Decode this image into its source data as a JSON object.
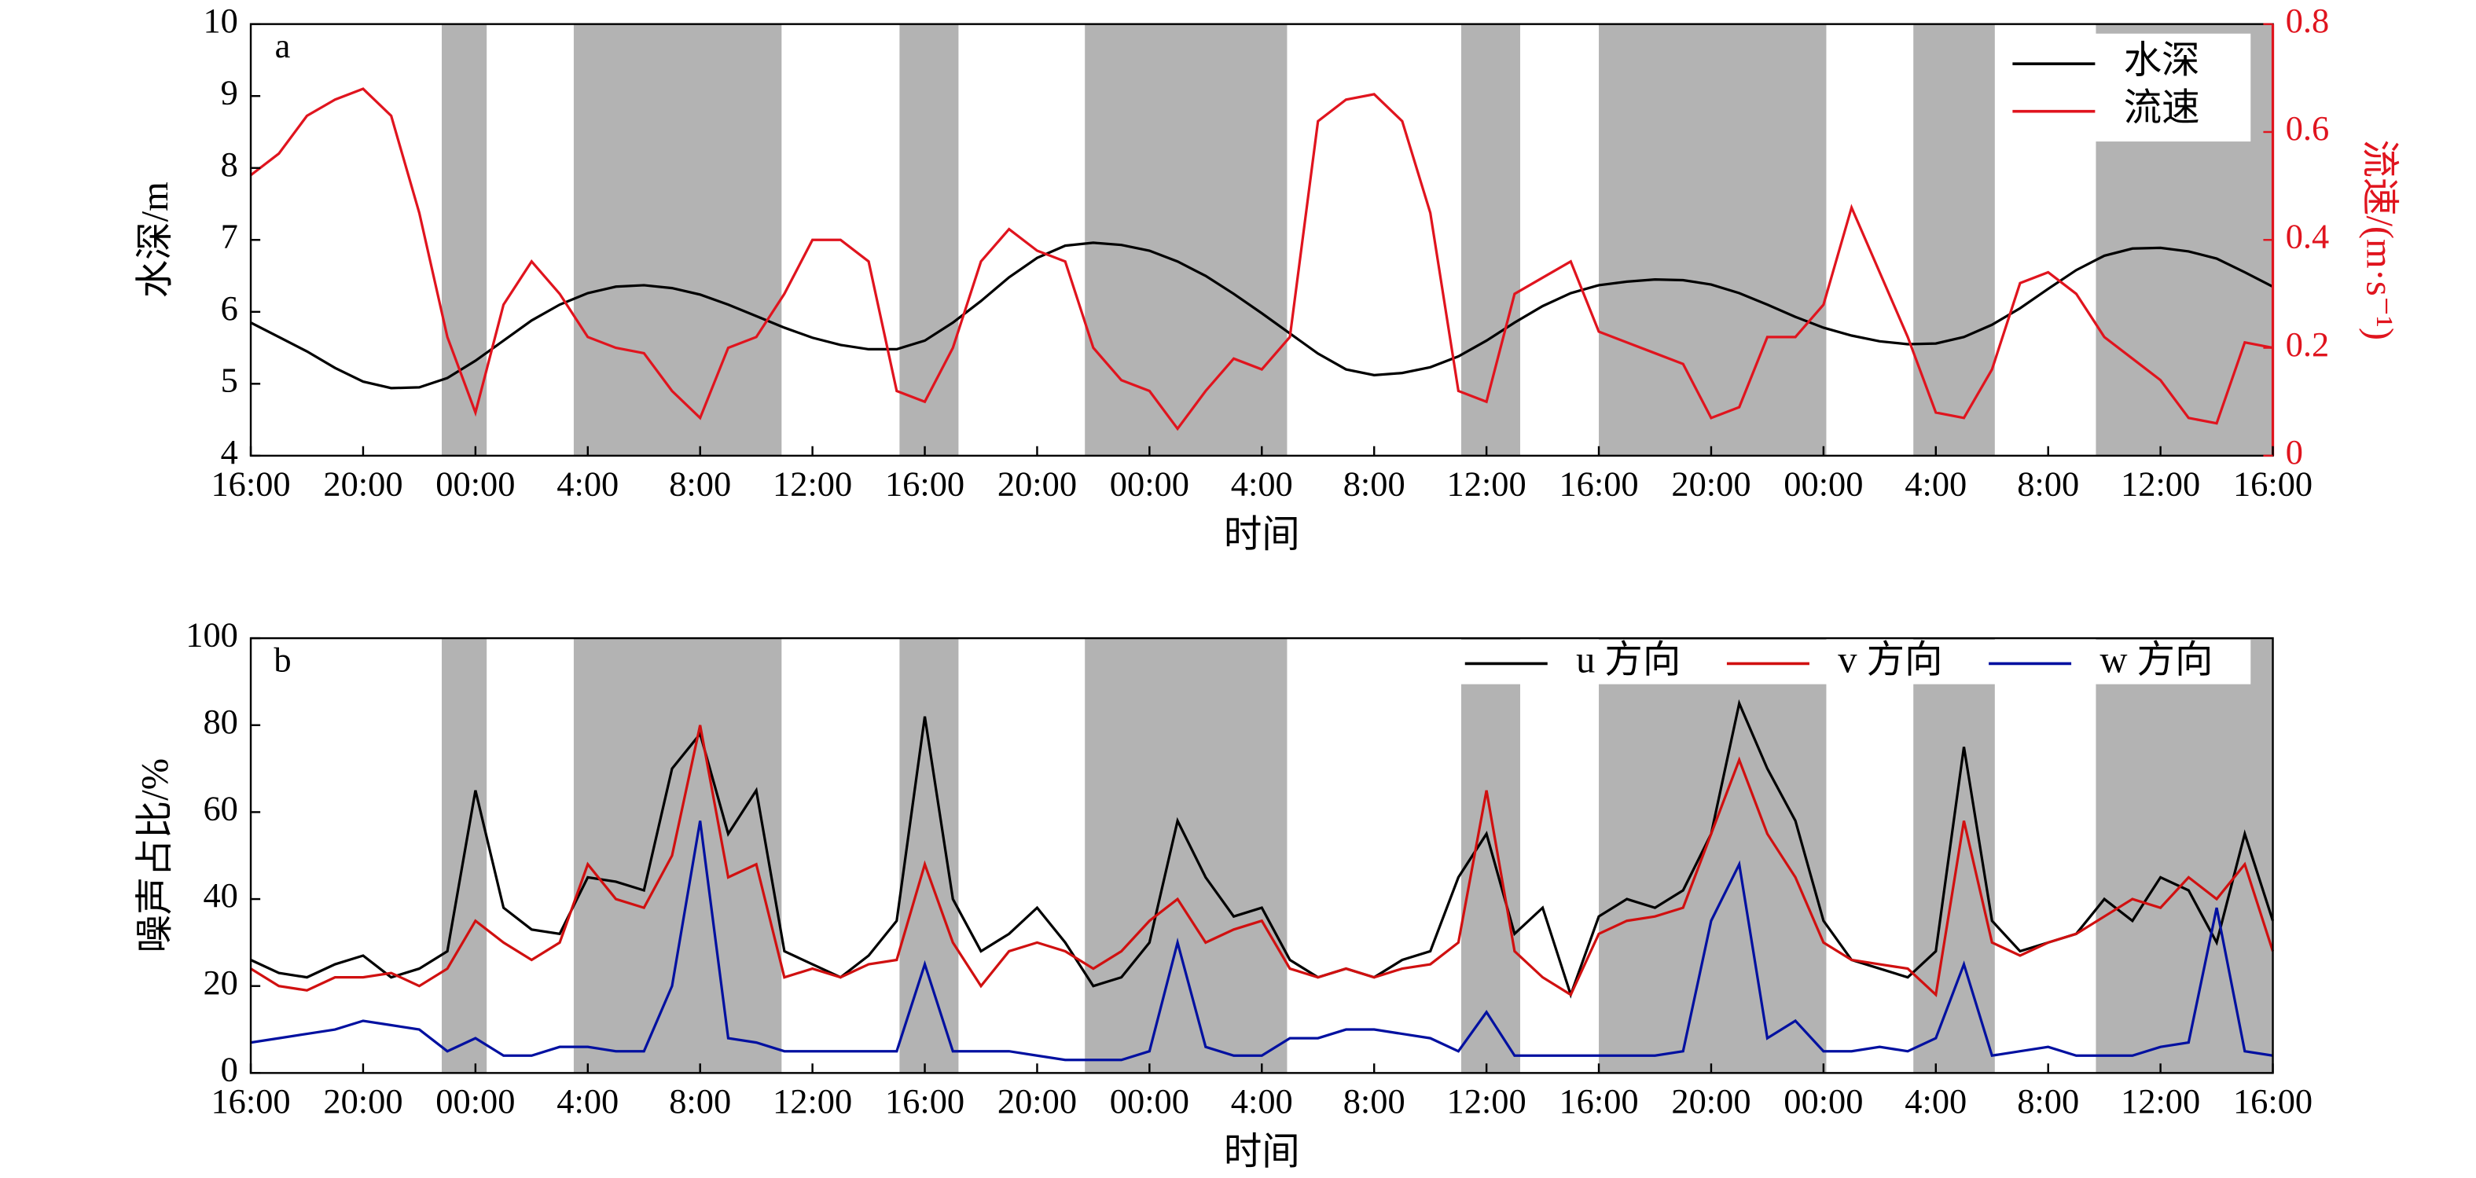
{
  "chart_data": [
    {
      "type": "line",
      "label": "a",
      "xlabel": "时间",
      "ylabel": "水深/m",
      "y2label": "流速/(m·s⁻¹)",
      "x": [
        0,
        1,
        2,
        3,
        4,
        5,
        6,
        7,
        8,
        9,
        10,
        11,
        12,
        13,
        14,
        15,
        16,
        17,
        18,
        19,
        20,
        21,
        22,
        23,
        24,
        25,
        26,
        27,
        28,
        29,
        30,
        31,
        32,
        33,
        34,
        35,
        36,
        37,
        38,
        39,
        40,
        41,
        42,
        43,
        44,
        45,
        46,
        47,
        48,
        49,
        50,
        51,
        52,
        53,
        54,
        55,
        56,
        57,
        58,
        59,
        60,
        61,
        62,
        63,
        64,
        65,
        66,
        67,
        68,
        69,
        70,
        71,
        72
      ],
      "xlim": [
        0,
        72
      ],
      "xticks": [
        {
          "value": 0,
          "label": "16:00"
        },
        {
          "value": 4,
          "label": "20:00"
        },
        {
          "value": 8,
          "label": "00:00"
        },
        {
          "value": 12,
          "label": "4:00"
        },
        {
          "value": 16,
          "label": "8:00"
        },
        {
          "value": 20,
          "label": "12:00"
        },
        {
          "value": 24,
          "label": "16:00"
        },
        {
          "value": 28,
          "label": "20:00"
        },
        {
          "value": 32,
          "label": "00:00"
        },
        {
          "value": 36,
          "label": "4:00"
        },
        {
          "value": 40,
          "label": "8:00"
        },
        {
          "value": 44,
          "label": "12:00"
        },
        {
          "value": 48,
          "label": "16:00"
        },
        {
          "value": 52,
          "label": "20:00"
        },
        {
          "value": 56,
          "label": "00:00"
        },
        {
          "value": 60,
          "label": "4:00"
        },
        {
          "value": 64,
          "label": "8:00"
        },
        {
          "value": 68,
          "label": "12:00"
        },
        {
          "value": 72,
          "label": "16:00"
        }
      ],
      "ylim": [
        4,
        10
      ],
      "yticks": [
        4,
        5,
        6,
        7,
        8,
        9,
        10
      ],
      "y2lim": [
        0,
        0.8
      ],
      "y2ticks": [
        0,
        0.2,
        0.4,
        0.6,
        0.8
      ],
      "y2color": "#e0141e",
      "shaded_regions": [
        [
          6.8,
          8.4
        ],
        [
          11.5,
          18.9
        ],
        [
          23.1,
          25.2
        ],
        [
          29.7,
          36.9
        ],
        [
          43.1,
          45.2
        ],
        [
          48.0,
          56.1
        ],
        [
          59.2,
          62.1
        ],
        [
          65.7,
          72.0
        ]
      ],
      "shade_color": "#b3b3b3",
      "legend": "upper right",
      "legend_columns": 1,
      "series": [
        {
          "name": "水深",
          "color": "#000000",
          "values": [
            5.85,
            5.65,
            5.45,
            5.22,
            5.03,
            4.94,
            4.95,
            5.08,
            5.32,
            5.6,
            5.88,
            6.1,
            6.26,
            6.35,
            6.37,
            6.33,
            6.24,
            6.1,
            5.94,
            5.78,
            5.64,
            5.54,
            5.48,
            5.48,
            5.6,
            5.85,
            6.15,
            6.48,
            6.75,
            6.92,
            6.96,
            6.93,
            6.85,
            6.7,
            6.5,
            6.25,
            5.98,
            5.7,
            5.42,
            5.2,
            5.12,
            5.15,
            5.23,
            5.38,
            5.6,
            5.85,
            6.08,
            6.26,
            6.37,
            6.42,
            6.45,
            6.44,
            6.38,
            6.26,
            6.1,
            5.93,
            5.78,
            5.67,
            5.59,
            5.55,
            5.56,
            5.65,
            5.82,
            6.05,
            6.32,
            6.58,
            6.78,
            6.88,
            6.89,
            6.84,
            6.74,
            6.55,
            6.35
          ]
        },
        {
          "name": "流速",
          "color": "#e0141e",
          "axis": "y2",
          "values": [
            0.52,
            0.56,
            0.63,
            0.66,
            0.68,
            0.63,
            0.45,
            0.22,
            0.08,
            0.28,
            0.36,
            0.3,
            0.22,
            0.2,
            0.19,
            0.12,
            0.07,
            0.2,
            0.22,
            0.3,
            0.4,
            0.4,
            0.36,
            0.12,
            0.1,
            0.2,
            0.36,
            0.42,
            0.38,
            0.36,
            0.2,
            0.14,
            0.12,
            0.05,
            0.12,
            0.18,
            0.16,
            0.22,
            0.62,
            0.66,
            0.67,
            0.62,
            0.45,
            0.12,
            0.1,
            0.3,
            0.33,
            0.36,
            0.23,
            0.21,
            0.19,
            0.17,
            0.07,
            0.09,
            0.22,
            0.22,
            0.28,
            0.46,
            0.34,
            0.22,
            0.08,
            0.07,
            0.16,
            0.32,
            0.34,
            0.3,
            0.22,
            0.18,
            0.14,
            0.07,
            0.06,
            0.21,
            0.2
          ]
        }
      ]
    },
    {
      "type": "line",
      "label": "b",
      "xlabel": "时间",
      "ylabel": "噪声占比/%",
      "x": [
        0,
        1,
        2,
        3,
        4,
        5,
        6,
        7,
        8,
        9,
        10,
        11,
        12,
        13,
        14,
        15,
        16,
        17,
        18,
        19,
        20,
        21,
        22,
        23,
        24,
        25,
        26,
        27,
        28,
        29,
        30,
        31,
        32,
        33,
        34,
        35,
        36,
        37,
        38,
        39,
        40,
        41,
        42,
        43,
        44,
        45,
        46,
        47,
        48,
        49,
        50,
        51,
        52,
        53,
        54,
        55,
        56,
        57,
        58,
        59,
        60,
        61,
        62,
        63,
        64,
        65,
        66,
        67,
        68,
        69,
        70,
        71,
        72
      ],
      "xlim": [
        0,
        72
      ],
      "xticks": [
        {
          "value": 0,
          "label": "16:00"
        },
        {
          "value": 4,
          "label": "20:00"
        },
        {
          "value": 8,
          "label": "00:00"
        },
        {
          "value": 12,
          "label": "4:00"
        },
        {
          "value": 16,
          "label": "8:00"
        },
        {
          "value": 20,
          "label": "12:00"
        },
        {
          "value": 24,
          "label": "16:00"
        },
        {
          "value": 28,
          "label": "20:00"
        },
        {
          "value": 32,
          "label": "00:00"
        },
        {
          "value": 36,
          "label": "4:00"
        },
        {
          "value": 40,
          "label": "8:00"
        },
        {
          "value": 44,
          "label": "12:00"
        },
        {
          "value": 48,
          "label": "16:00"
        },
        {
          "value": 52,
          "label": "20:00"
        },
        {
          "value": 56,
          "label": "00:00"
        },
        {
          "value": 60,
          "label": "4:00"
        },
        {
          "value": 64,
          "label": "8:00"
        },
        {
          "value": 68,
          "label": "12:00"
        },
        {
          "value": 72,
          "label": "16:00"
        }
      ],
      "ylim": [
        0,
        100
      ],
      "yticks": [
        0,
        20,
        40,
        60,
        80,
        100
      ],
      "shaded_regions": [
        [
          6.8,
          8.4
        ],
        [
          11.5,
          18.9
        ],
        [
          23.1,
          25.2
        ],
        [
          29.7,
          36.9
        ],
        [
          43.1,
          45.2
        ],
        [
          48.0,
          56.1
        ],
        [
          59.2,
          62.1
        ],
        [
          65.7,
          72.0
        ]
      ],
      "shade_color": "#b3b3b3",
      "legend": "upper right",
      "legend_columns": 3,
      "series": [
        {
          "name": "u 方向",
          "color": "#000000",
          "values": [
            26,
            23,
            22,
            25,
            27,
            22,
            24,
            28,
            65,
            38,
            33,
            32,
            45,
            44,
            42,
            70,
            78,
            55,
            65,
            28,
            25,
            22,
            27,
            35,
            82,
            40,
            28,
            32,
            38,
            30,
            20,
            22,
            30,
            58,
            45,
            36,
            38,
            26,
            22,
            24,
            22,
            26,
            28,
            45,
            55,
            32,
            38,
            18,
            36,
            40,
            38,
            42,
            55,
            85,
            70,
            58,
            35,
            26,
            24,
            22,
            28,
            75,
            35,
            28,
            30,
            32,
            40,
            35,
            45,
            42,
            30,
            55,
            35
          ]
        },
        {
          "name": "v 方向",
          "color": "#d01010",
          "values": [
            24,
            20,
            19,
            22,
            22,
            23,
            20,
            24,
            35,
            30,
            26,
            30,
            48,
            40,
            38,
            50,
            80,
            45,
            48,
            22,
            24,
            22,
            25,
            26,
            48,
            30,
            20,
            28,
            30,
            28,
            24,
            28,
            35,
            40,
            30,
            33,
            35,
            24,
            22,
            24,
            22,
            24,
            25,
            30,
            65,
            28,
            22,
            18,
            32,
            35,
            36,
            38,
            55,
            72,
            55,
            45,
            30,
            26,
            25,
            24,
            18,
            58,
            30,
            27,
            30,
            32,
            36,
            40,
            38,
            45,
            40,
            48,
            28
          ]
        },
        {
          "name": "w 方向",
          "color": "#0010a0",
          "values": [
            7,
            8,
            9,
            10,
            12,
            11,
            10,
            5,
            8,
            4,
            4,
            6,
            6,
            5,
            5,
            20,
            58,
            8,
            7,
            5,
            5,
            5,
            5,
            5,
            25,
            5,
            5,
            5,
            4,
            3,
            3,
            3,
            5,
            30,
            6,
            4,
            4,
            8,
            8,
            10,
            10,
            9,
            8,
            5,
            14,
            4,
            4,
            4,
            4,
            4,
            4,
            5,
            35,
            48,
            8,
            12,
            5,
            5,
            6,
            5,
            8,
            25,
            4,
            5,
            6,
            4,
            4,
            4,
            6,
            7,
            38,
            5,
            4
          ]
        }
      ]
    }
  ]
}
